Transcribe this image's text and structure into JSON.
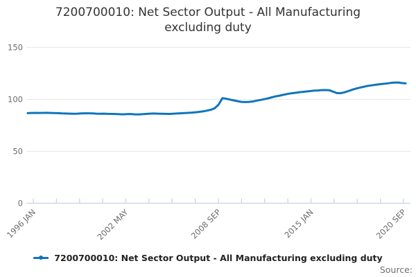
{
  "title": "7200700010: Net Sector Output - All Manufacturing excluding duty",
  "legend": {
    "label": "7200700010: Net Sector Output - All Manufacturing excluding duty"
  },
  "footer": {
    "source_label": "Source:"
  },
  "colors": {
    "series_line": "#0f74bc",
    "axis_line": "#c6d0e4",
    "gridline": "#e7e7e7",
    "tick_label": "#6b6b6b"
  },
  "chart_data": {
    "type": "line",
    "title": "7200700010: Net Sector Output - All Manufacturing excluding duty",
    "xlabel": "",
    "ylabel": "",
    "ylim": [
      0,
      150
    ],
    "y_ticks": [
      0,
      50,
      100,
      150
    ],
    "grid": "horizontal",
    "legend_position": "bottom",
    "x_tick_labels": [
      "1996 JAN",
      "2002 MAY",
      "2008 SEP",
      "2015 JAN",
      "2020 SEP"
    ],
    "x_start": "1996 JAN",
    "x_interval": "quarterly",
    "series": [
      {
        "name": "7200700010: Net Sector Output - All Manufacturing excluding duty",
        "color": "#0f74bc",
        "values": [
          86.7,
          86.9,
          87.0,
          86.9,
          87.0,
          87.1,
          86.9,
          86.8,
          86.7,
          86.5,
          86.4,
          86.3,
          86.2,
          86.3,
          86.5,
          86.6,
          86.6,
          86.5,
          86.3,
          86.2,
          86.3,
          86.1,
          86.0,
          85.9,
          85.7,
          85.6,
          85.8,
          85.9,
          85.6,
          85.5,
          85.7,
          86.0,
          86.3,
          86.4,
          86.3,
          86.2,
          86.1,
          86.0,
          86.2,
          86.4,
          86.6,
          86.8,
          87.0,
          87.3,
          87.6,
          88.0,
          88.5,
          89.2,
          90.0,
          91.5,
          95.0,
          101.2,
          100.6,
          99.8,
          99.0,
          98.3,
          97.6,
          97.4,
          97.6,
          98.0,
          98.8,
          99.5,
          100.2,
          101.0,
          102.0,
          102.9,
          103.6,
          104.4,
          105.2,
          105.8,
          106.3,
          106.8,
          107.2,
          107.6,
          108.0,
          108.4,
          108.6,
          108.9,
          109.0,
          108.8,
          107.5,
          106.1,
          105.9,
          106.8,
          108.0,
          109.3,
          110.4,
          111.3,
          112.1,
          112.9,
          113.5,
          114.0,
          114.5,
          114.9,
          115.3,
          115.8,
          116.2,
          116.3,
          115.7,
          115.4
        ]
      }
    ]
  }
}
